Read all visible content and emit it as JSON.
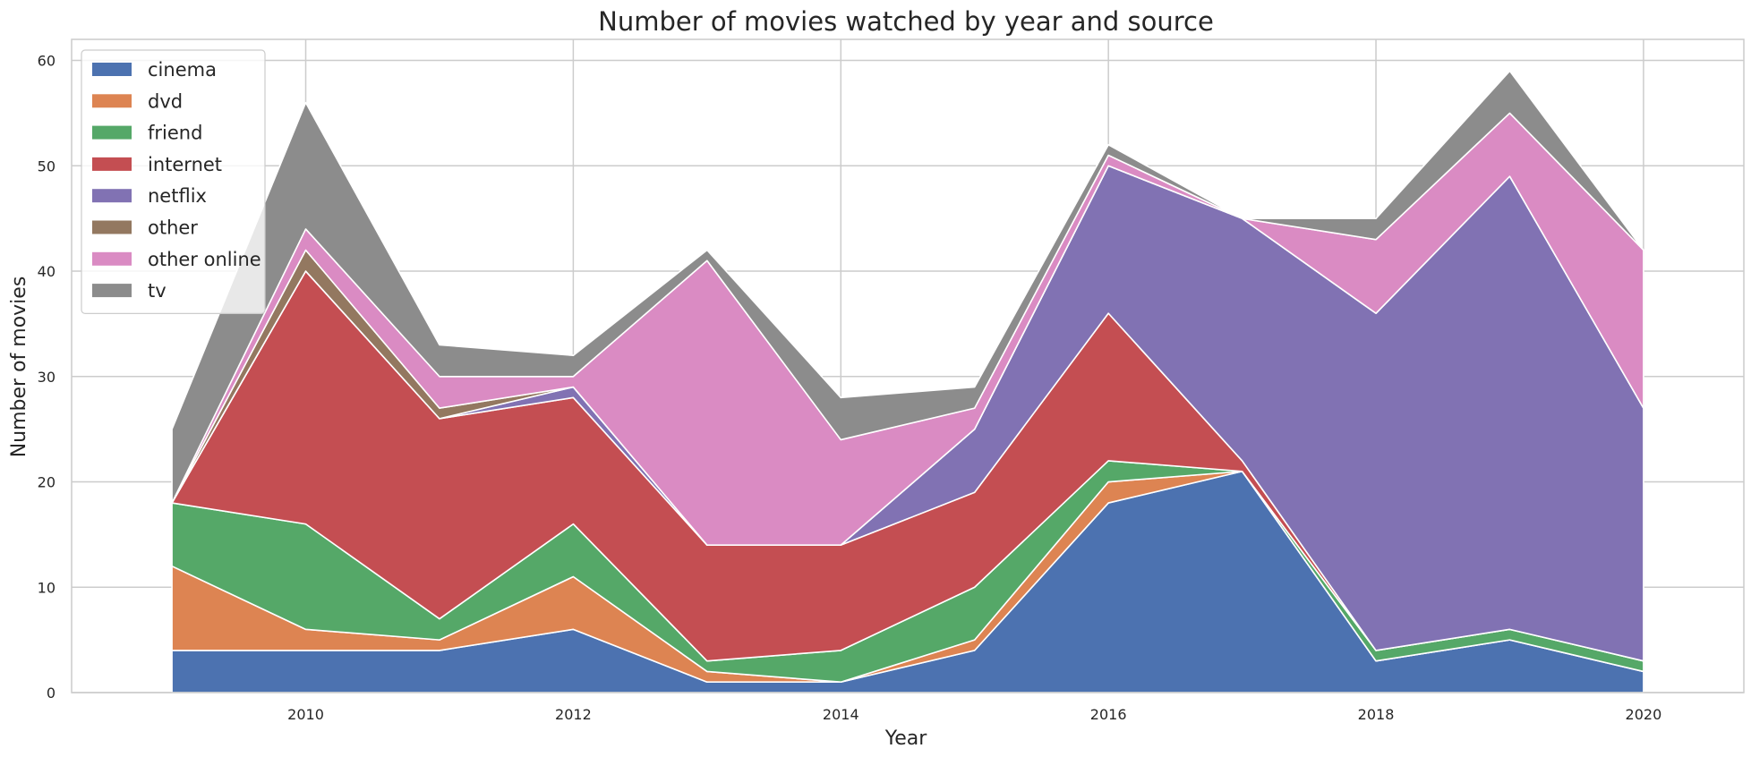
{
  "chart_data": {
    "type": "area",
    "stacked": true,
    "title": "Number of movies watched by year and source",
    "xlabel": "Year",
    "ylabel": "Number of movies",
    "x": [
      2009,
      2010,
      2011,
      2012,
      2013,
      2014,
      2015,
      2016,
      2017,
      2018,
      2019,
      2020
    ],
    "xlim": [
      2008.25,
      2020.75
    ],
    "ylim": [
      0,
      62
    ],
    "xticks": [
      "2010",
      "2012",
      "2014",
      "2016",
      "2018",
      "2020"
    ],
    "yticks": [
      "0",
      "10",
      "20",
      "30",
      "40",
      "50",
      "60"
    ],
    "grid": true,
    "legend_position": "top-left",
    "series": [
      {
        "name": "cinema",
        "color": "#4c72b0",
        "values": [
          4,
          4,
          4,
          6,
          1,
          1,
          4,
          18,
          21,
          3,
          5,
          2
        ]
      },
      {
        "name": "dvd",
        "color": "#dd8452",
        "values": [
          8,
          2,
          1,
          5,
          1,
          0,
          1,
          2,
          0,
          0,
          0,
          0
        ]
      },
      {
        "name": "friend",
        "color": "#55a868",
        "values": [
          6,
          10,
          2,
          5,
          1,
          3,
          5,
          2,
          0,
          1,
          1,
          1
        ]
      },
      {
        "name": "internet",
        "color": "#c44e52",
        "values": [
          0,
          24,
          19,
          12,
          11,
          10,
          9,
          14,
          1,
          0,
          0,
          0
        ]
      },
      {
        "name": "netflix",
        "color": "#8172b3",
        "values": [
          0,
          0,
          0,
          1,
          0,
          0,
          6,
          14,
          23,
          32,
          43,
          24
        ]
      },
      {
        "name": "other",
        "color": "#937860",
        "values": [
          0,
          2,
          1,
          0,
          0,
          0,
          0,
          0,
          0,
          0,
          0,
          0
        ]
      },
      {
        "name": "other online",
        "color": "#da8bc3",
        "values": [
          0,
          2,
          3,
          1,
          27,
          10,
          2,
          1,
          0,
          7,
          6,
          15
        ]
      },
      {
        "name": "tv",
        "color": "#8c8c8c",
        "values": [
          7,
          12,
          3,
          2,
          1,
          4,
          2,
          1,
          0,
          2,
          4,
          0
        ]
      }
    ]
  }
}
